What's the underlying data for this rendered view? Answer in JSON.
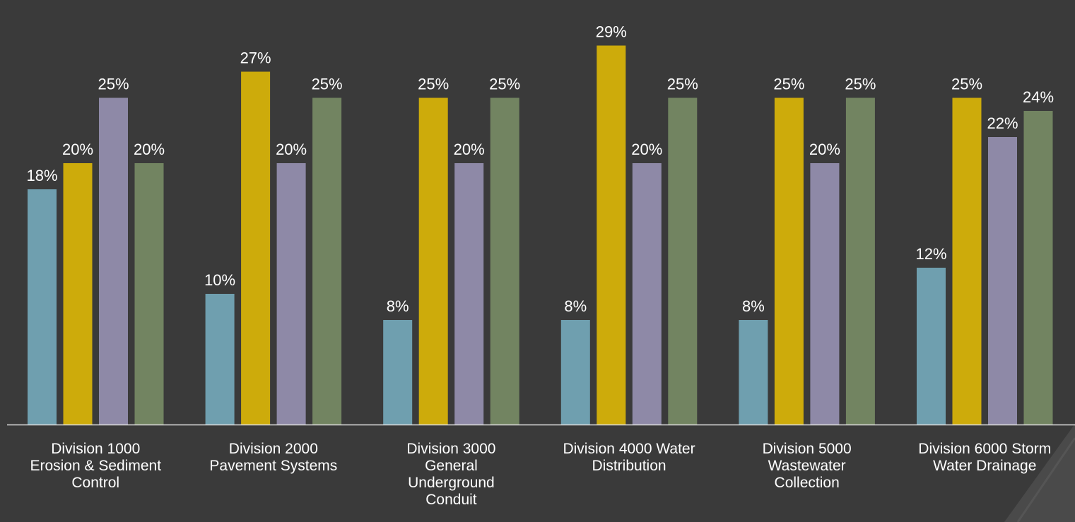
{
  "chart_data": {
    "type": "bar",
    "categories": [
      "Division 1000\nErosion & Sediment\nControl",
      "Division 2000\nPavement Systems",
      "Division 3000\nGeneral\nUnderground\nConduit",
      "Division 4000 Water\nDistribution",
      "Division 5000\nWastewater\nCollection",
      "Division 6000 Storm\nWater Drainage"
    ],
    "series": [
      {
        "values": [
          18,
          10,
          8,
          8,
          8,
          12
        ],
        "color": "#6f9faf"
      },
      {
        "values": [
          20,
          27,
          25,
          29,
          25,
          25
        ],
        "color": "#cdab0b"
      },
      {
        "values": [
          25,
          20,
          20,
          20,
          20,
          22
        ],
        "color": "#8e89a7"
      },
      {
        "values": [
          20,
          25,
          25,
          25,
          25,
          24
        ],
        "color": "#728461"
      }
    ],
    "value_suffix": "%",
    "ylim": [
      0,
      30
    ],
    "grid": false,
    "legend": "none",
    "background": "#3a3a3a",
    "axis_color": "#dddddd",
    "label_color": "#ffffff"
  }
}
